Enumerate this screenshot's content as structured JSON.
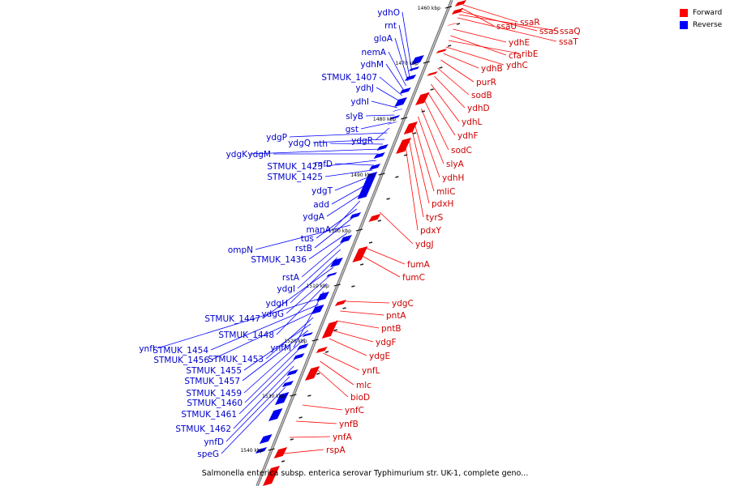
{
  "legend": {
    "items": [
      {
        "label": "Forward",
        "color": "#ff0000"
      },
      {
        "label": "Reverse",
        "color": "#0000ff"
      }
    ]
  },
  "caption": "Salmonella enterica subsp. enterica serovar Typhimurium str. UK-1, complete geno...",
  "ticks": [
    "1460 kbp",
    "1470 kbp",
    "1480 kbp",
    "1490 kbp",
    "1500 kbp",
    "1510 kbp",
    "1520 kbp",
    "1530 kbp",
    "1540 kbp"
  ],
  "reverse_genes": [
    "ydhO",
    "rnt",
    "gloA",
    "nemA",
    "ydhM",
    "STMUK_1407",
    "ydhJ",
    "ydhI",
    "slyB",
    "gst",
    "ydgR",
    "ydgP",
    "ydgQ",
    "nth",
    "ydgK",
    "ydgM",
    "STMUK_1423",
    "rnfD",
    "STMUK_1425",
    "ydgT",
    "add",
    "ydgA",
    "manA",
    "tus",
    "rstB",
    "ompN",
    "STMUK_1436",
    "rstA",
    "ydgI",
    "ydgH",
    "STMUK_1447",
    "ydgG",
    "STMUK_1448",
    "ynfM",
    "ynfI",
    "STMUK_1454",
    "STMUK_1456",
    "STMUK_1453",
    "STMUK_1455",
    "STMUK_1457",
    "STMUK_1459",
    "STMUK_1460",
    "STMUK_1461",
    "STMUK_1462",
    "ynfD",
    "speG"
  ],
  "forward_genes": [
    "ssaR",
    "ssaU",
    "ssaS",
    "ssaQ",
    "ssaT",
    "ydhE",
    "cfa",
    "ribE",
    "ydhC",
    "ydhB",
    "purR",
    "sodB",
    "ydhD",
    "ydhL",
    "ydhF",
    "sodC",
    "slyA",
    "ydhH",
    "mliC",
    "pdxH",
    "tyrS",
    "pdxY",
    "ydgJ",
    "fumA",
    "fumC",
    "ydgC",
    "pntA",
    "pntB",
    "ydgF",
    "ydgE",
    "ynfL",
    "mlc",
    "bioD",
    "ynfC",
    "ynfB",
    "ynfA",
    "rspA"
  ]
}
